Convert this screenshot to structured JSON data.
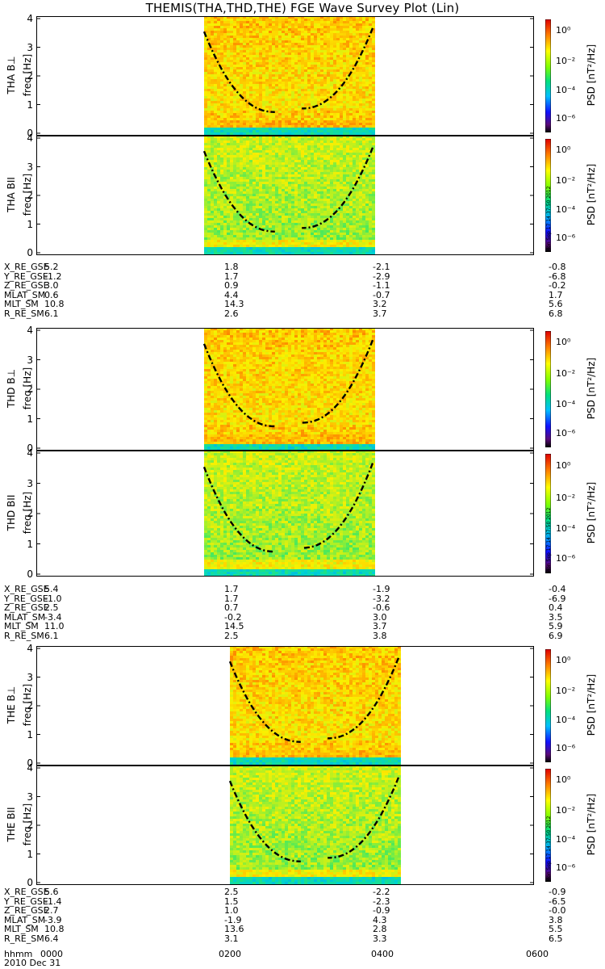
{
  "title": "THEMIS(THA,THD,THE) FGE Wave Survey Plot (Lin)",
  "colorbar": {
    "label": "PSD [nT²/Hz]",
    "ticks": [
      "10⁰",
      "10⁻²",
      "10⁻⁴",
      "10⁻⁶"
    ]
  },
  "timestamp": "Mon Sep 17 14:37:50 2012",
  "freq_label": "freq [Hz]",
  "freq_ticks": [
    "4",
    "3",
    "2",
    "1",
    "0"
  ],
  "time_axis": {
    "label": "hhmm",
    "date": "2010 Dec 31",
    "ticks": [
      "0000",
      "0200",
      "0400",
      "0600"
    ]
  },
  "chart_data": [
    {
      "type": "heatmap",
      "name": "THA B⊥",
      "ylabel": "freq [Hz]",
      "ylim": [
        0,
        4
      ],
      "xlim": [
        "0000",
        "0600"
      ],
      "data_range": [
        "0140",
        "0400"
      ],
      "colorscale": "log",
      "zlim": [
        "1e-6",
        "1e1"
      ]
    },
    {
      "type": "heatmap",
      "name": "THA B∥",
      "ylabel": "freq [Hz]",
      "ylim": [
        0,
        4
      ],
      "xlim": [
        "0000",
        "0600"
      ],
      "data_range": [
        "0140",
        "0400"
      ],
      "colorscale": "log",
      "zlim": [
        "1e-6",
        "1e1"
      ]
    },
    {
      "type": "heatmap",
      "name": "THD B⊥",
      "ylabel": "freq [Hz]",
      "ylim": [
        0,
        4
      ],
      "xlim": [
        "0000",
        "0600"
      ],
      "data_range": [
        "0140",
        "0400"
      ],
      "colorscale": "log",
      "zlim": [
        "1e-6",
        "1e1"
      ]
    },
    {
      "type": "heatmap",
      "name": "THD B∥",
      "ylabel": "freq [Hz]",
      "ylim": [
        0,
        4
      ],
      "xlim": [
        "0000",
        "0600"
      ],
      "data_range": [
        "0140",
        "0400"
      ],
      "colorscale": "log",
      "zlim": [
        "1e-6",
        "1e1"
      ]
    },
    {
      "type": "heatmap",
      "name": "THE B⊥",
      "ylabel": "freq [Hz]",
      "ylim": [
        0,
        4
      ],
      "xlim": [
        "0000",
        "0600"
      ],
      "data_range": [
        "0200",
        "0430"
      ],
      "colorscale": "log",
      "zlim": [
        "1e-6",
        "1e1"
      ]
    },
    {
      "type": "heatmap",
      "name": "THE B∥",
      "ylabel": "freq [Hz]",
      "ylim": [
        0,
        4
      ],
      "xlim": [
        "0000",
        "0600"
      ],
      "data_range": [
        "0200",
        "0430"
      ],
      "colorscale": "log",
      "zlim": [
        "1e-6",
        "1e1"
      ]
    }
  ],
  "panels": [
    {
      "label": "THA B⊥"
    },
    {
      "label": "THA BII"
    },
    {
      "label": "THD B⊥"
    },
    {
      "label": "THD BII"
    },
    {
      "label": "THE B⊥"
    },
    {
      "label": "THE BII"
    }
  ],
  "orbits": [
    {
      "rows": [
        {
          "name": "X_RE_GSE",
          "v": [
            "5.2",
            "1.8",
            "-2.1",
            "-0.8"
          ]
        },
        {
          "name": "Y_RE_GSE",
          "v": [
            "-1.2",
            "1.7",
            "-2.9",
            "-6.8"
          ]
        },
        {
          "name": "Z_RE_GSE",
          "v": [
            "3.0",
            "0.9",
            "-1.1",
            "-0.2"
          ]
        },
        {
          "name": "MLAT_SM",
          "v": [
            "0.6",
            "4.4",
            "-0.7",
            "1.7"
          ]
        },
        {
          "name": "MLT_SM",
          "v": [
            "10.8",
            "14.3",
            "3.2",
            "5.6"
          ]
        },
        {
          "name": "R_RE_SM",
          "v": [
            "6.1",
            "2.6",
            "3.7",
            "6.8"
          ]
        }
      ]
    },
    {
      "rows": [
        {
          "name": "X_RE_GSE",
          "v": [
            "5.4",
            "1.7",
            "-1.9",
            "-0.4"
          ]
        },
        {
          "name": "Y_RE_GSE",
          "v": [
            "-1.0",
            "1.7",
            "-3.2",
            "-6.9"
          ]
        },
        {
          "name": "Z_RE_GSE",
          "v": [
            "2.5",
            "0.7",
            "-0.6",
            "0.4"
          ]
        },
        {
          "name": "MLAT_SM",
          "v": [
            "-3.4",
            "-0.2",
            "3.0",
            "3.5"
          ]
        },
        {
          "name": "MLT_SM",
          "v": [
            "11.0",
            "14.5",
            "3.7",
            "5.9"
          ]
        },
        {
          "name": "R_RE_SM",
          "v": [
            "6.1",
            "2.5",
            "3.8",
            "6.9"
          ]
        }
      ]
    },
    {
      "rows": [
        {
          "name": "X_RE_GSE",
          "v": [
            "5.6",
            "2.5",
            "-2.2",
            "-0.9"
          ]
        },
        {
          "name": "Y_RE_GSE",
          "v": [
            "-1.4",
            "1.5",
            "-2.3",
            "-6.5"
          ]
        },
        {
          "name": "Z_RE_GSE",
          "v": [
            "2.7",
            "1.0",
            "-0.9",
            "-0.0"
          ]
        },
        {
          "name": "MLAT_SM",
          "v": [
            "-3.9",
            "-1.9",
            "4.3",
            "3.8"
          ]
        },
        {
          "name": "MLT_SM",
          "v": [
            "10.8",
            "13.6",
            "2.8",
            "5.5"
          ]
        },
        {
          "name": "R_RE_SM",
          "v": [
            "6.4",
            "3.1",
            "3.3",
            "6.5"
          ]
        }
      ]
    }
  ]
}
